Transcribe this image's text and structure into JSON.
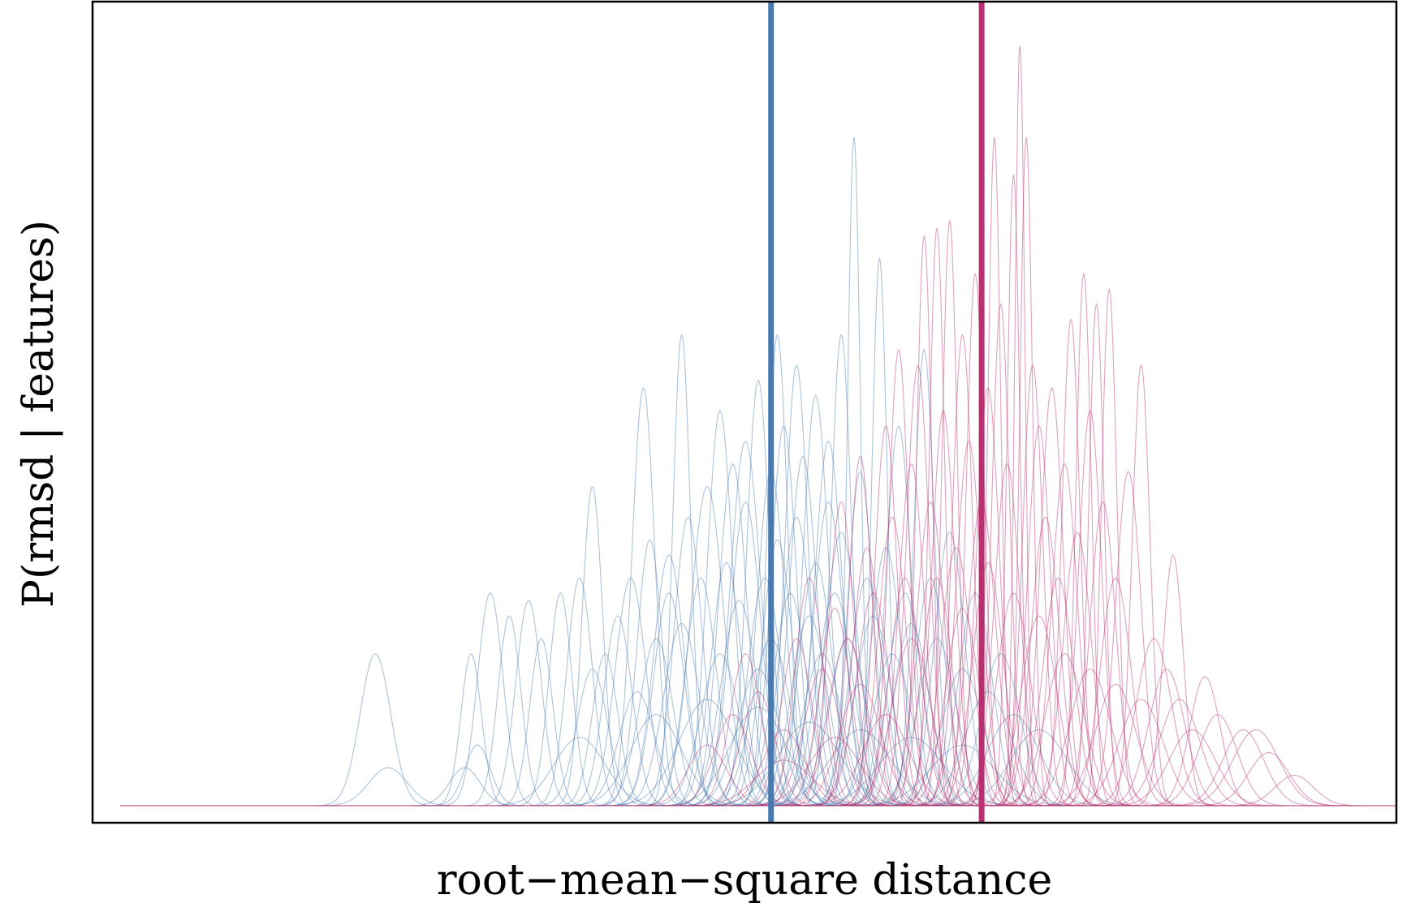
{
  "chart_data": {
    "type": "line",
    "title": "",
    "xlabel": "root−mean−square distance",
    "ylabel": "P(rmsd | features)",
    "xlim": [
      0,
      1
    ],
    "ylim": [
      0,
      1.05
    ],
    "ticks_shown": false,
    "grid": false,
    "legend": "none",
    "series": [
      {
        "color": "#4a79ad",
        "curve_opacity": 0.45,
        "mean_marker": 0.51,
        "peaks": [
          [
            0.2,
            0.2,
            0.012
          ],
          [
            0.21,
            0.05,
            0.015
          ],
          [
            0.27,
            0.05,
            0.012
          ],
          [
            0.28,
            0.08,
            0.01
          ],
          [
            0.275,
            0.2,
            0.008
          ],
          [
            0.29,
            0.28,
            0.01
          ],
          [
            0.305,
            0.25,
            0.009
          ],
          [
            0.32,
            0.27,
            0.01
          ],
          [
            0.33,
            0.22,
            0.009
          ],
          [
            0.345,
            0.28,
            0.009
          ],
          [
            0.36,
            0.3,
            0.01
          ],
          [
            0.37,
            0.18,
            0.012
          ],
          [
            0.38,
            0.2,
            0.01
          ],
          [
            0.39,
            0.25,
            0.011
          ],
          [
            0.4,
            0.3,
            0.012
          ],
          [
            0.405,
            0.15,
            0.014
          ],
          [
            0.415,
            0.35,
            0.01
          ],
          [
            0.42,
            0.22,
            0.013
          ],
          [
            0.43,
            0.28,
            0.012
          ],
          [
            0.44,
            0.24,
            0.014
          ],
          [
            0.445,
            0.38,
            0.011
          ],
          [
            0.455,
            0.3,
            0.012
          ],
          [
            0.46,
            0.42,
            0.013
          ],
          [
            0.47,
            0.2,
            0.015
          ],
          [
            0.475,
            0.32,
            0.012
          ],
          [
            0.485,
            0.27,
            0.014
          ],
          [
            0.49,
            0.4,
            0.012
          ],
          [
            0.5,
            0.18,
            0.016
          ],
          [
            0.505,
            0.3,
            0.013
          ],
          [
            0.51,
            0.22,
            0.015
          ],
          [
            0.515,
            0.35,
            0.012
          ],
          [
            0.52,
            0.5,
            0.01
          ],
          [
            0.525,
            0.28,
            0.013
          ],
          [
            0.53,
            0.38,
            0.012
          ],
          [
            0.535,
            0.46,
            0.011
          ],
          [
            0.54,
            0.25,
            0.014
          ],
          [
            0.545,
            0.32,
            0.013
          ],
          [
            0.55,
            0.2,
            0.015
          ],
          [
            0.555,
            0.4,
            0.012
          ],
          [
            0.56,
            0.28,
            0.014
          ],
          [
            0.565,
            0.36,
            0.013
          ],
          [
            0.57,
            0.22,
            0.015
          ],
          [
            0.575,
            0.88,
            0.005
          ],
          [
            0.58,
            0.44,
            0.01
          ],
          [
            0.585,
            0.3,
            0.013
          ],
          [
            0.59,
            0.25,
            0.014
          ],
          [
            0.595,
            0.72,
            0.006
          ],
          [
            0.6,
            0.34,
            0.012
          ],
          [
            0.605,
            0.2,
            0.015
          ],
          [
            0.61,
            0.5,
            0.01
          ],
          [
            0.615,
            0.28,
            0.013
          ],
          [
            0.62,
            0.24,
            0.014
          ],
          [
            0.63,
            0.6,
            0.008
          ],
          [
            0.635,
            0.3,
            0.012
          ],
          [
            0.64,
            0.22,
            0.015
          ],
          [
            0.65,
            0.36,
            0.012
          ],
          [
            0.66,
            0.18,
            0.016
          ],
          [
            0.67,
            0.28,
            0.013
          ],
          [
            0.68,
            0.15,
            0.018
          ],
          [
            0.69,
            0.2,
            0.015
          ],
          [
            0.7,
            0.12,
            0.02
          ],
          [
            0.72,
            0.1,
            0.022
          ],
          [
            0.37,
            0.42,
            0.008
          ],
          [
            0.41,
            0.55,
            0.009
          ],
          [
            0.43,
            0.33,
            0.012
          ],
          [
            0.44,
            0.62,
            0.007
          ],
          [
            0.47,
            0.52,
            0.01
          ],
          [
            0.48,
            0.45,
            0.011
          ],
          [
            0.49,
            0.48,
            0.012
          ],
          [
            0.5,
            0.56,
            0.009
          ],
          [
            0.51,
            0.44,
            0.011
          ],
          [
            0.515,
            0.62,
            0.008
          ],
          [
            0.53,
            0.58,
            0.009
          ],
          [
            0.545,
            0.54,
            0.01
          ],
          [
            0.555,
            0.48,
            0.011
          ],
          [
            0.565,
            0.62,
            0.008
          ],
          [
            0.36,
            0.09,
            0.02
          ],
          [
            0.42,
            0.12,
            0.02
          ],
          [
            0.46,
            0.14,
            0.022
          ],
          [
            0.5,
            0.13,
            0.022
          ],
          [
            0.54,
            0.11,
            0.024
          ],
          [
            0.58,
            0.1,
            0.024
          ],
          [
            0.62,
            0.09,
            0.025
          ],
          [
            0.66,
            0.08,
            0.025
          ]
        ]
      },
      {
        "color": "#b7306f",
        "curve_opacity": 0.45,
        "mean_marker": 0.675,
        "peaks": [
          [
            0.46,
            0.08,
            0.015
          ],
          [
            0.48,
            0.12,
            0.014
          ],
          [
            0.49,
            0.2,
            0.012
          ],
          [
            0.5,
            0.15,
            0.013
          ],
          [
            0.52,
            0.1,
            0.016
          ],
          [
            0.53,
            0.22,
            0.012
          ],
          [
            0.54,
            0.3,
            0.011
          ],
          [
            0.55,
            0.18,
            0.014
          ],
          [
            0.56,
            0.26,
            0.012
          ],
          [
            0.565,
            0.4,
            0.01
          ],
          [
            0.57,
            0.22,
            0.014
          ],
          [
            0.58,
            0.46,
            0.009
          ],
          [
            0.585,
            0.34,
            0.011
          ],
          [
            0.59,
            0.28,
            0.013
          ],
          [
            0.6,
            0.5,
            0.009
          ],
          [
            0.605,
            0.38,
            0.011
          ],
          [
            0.61,
            0.6,
            0.008
          ],
          [
            0.615,
            0.3,
            0.012
          ],
          [
            0.62,
            0.45,
            0.01
          ],
          [
            0.625,
            0.58,
            0.009
          ],
          [
            0.63,
            0.75,
            0.006
          ],
          [
            0.635,
            0.4,
            0.011
          ],
          [
            0.64,
            0.76,
            0.006
          ],
          [
            0.645,
            0.52,
            0.009
          ],
          [
            0.65,
            0.77,
            0.006
          ],
          [
            0.655,
            0.34,
            0.012
          ],
          [
            0.66,
            0.62,
            0.008
          ],
          [
            0.665,
            0.48,
            0.01
          ],
          [
            0.67,
            0.7,
            0.007
          ],
          [
            0.675,
            0.4,
            0.011
          ],
          [
            0.68,
            0.55,
            0.009
          ],
          [
            0.685,
            0.88,
            0.005
          ],
          [
            0.69,
            0.66,
            0.007
          ],
          [
            0.695,
            0.45,
            0.01
          ],
          [
            0.7,
            0.83,
            0.005
          ],
          [
            0.705,
            1.0,
            0.004
          ],
          [
            0.71,
            0.88,
            0.005
          ],
          [
            0.715,
            0.58,
            0.008
          ],
          [
            0.72,
            0.5,
            0.009
          ],
          [
            0.725,
            0.38,
            0.011
          ],
          [
            0.73,
            0.55,
            0.009
          ],
          [
            0.735,
            0.3,
            0.012
          ],
          [
            0.74,
            0.45,
            0.01
          ],
          [
            0.745,
            0.64,
            0.007
          ],
          [
            0.75,
            0.36,
            0.011
          ],
          [
            0.755,
            0.7,
            0.006
          ],
          [
            0.76,
            0.52,
            0.009
          ],
          [
            0.765,
            0.66,
            0.006
          ],
          [
            0.77,
            0.4,
            0.01
          ],
          [
            0.775,
            0.68,
            0.006
          ],
          [
            0.78,
            0.3,
            0.012
          ],
          [
            0.79,
            0.44,
            0.01
          ],
          [
            0.8,
            0.58,
            0.007
          ],
          [
            0.81,
            0.22,
            0.014
          ],
          [
            0.82,
            0.18,
            0.014
          ],
          [
            0.825,
            0.33,
            0.008
          ],
          [
            0.83,
            0.14,
            0.016
          ],
          [
            0.85,
            0.17,
            0.012
          ],
          [
            0.86,
            0.12,
            0.015
          ],
          [
            0.88,
            0.1,
            0.016
          ],
          [
            0.89,
            0.1,
            0.018
          ],
          [
            0.9,
            0.07,
            0.016
          ],
          [
            0.92,
            0.04,
            0.015
          ],
          [
            0.7,
            0.28,
            0.013
          ],
          [
            0.72,
            0.25,
            0.014
          ],
          [
            0.66,
            0.26,
            0.013
          ],
          [
            0.62,
            0.22,
            0.015
          ],
          [
            0.58,
            0.16,
            0.016
          ],
          [
            0.74,
            0.2,
            0.015
          ],
          [
            0.76,
            0.18,
            0.016
          ],
          [
            0.78,
            0.16,
            0.016
          ],
          [
            0.8,
            0.14,
            0.017
          ],
          [
            0.64,
            0.3,
            0.012
          ],
          [
            0.68,
            0.32,
            0.012
          ],
          [
            0.6,
            0.12,
            0.018
          ],
          [
            0.84,
            0.1,
            0.018
          ],
          [
            0.56,
            0.09,
            0.02
          ],
          [
            0.52,
            0.06,
            0.022
          ]
        ]
      }
    ]
  }
}
